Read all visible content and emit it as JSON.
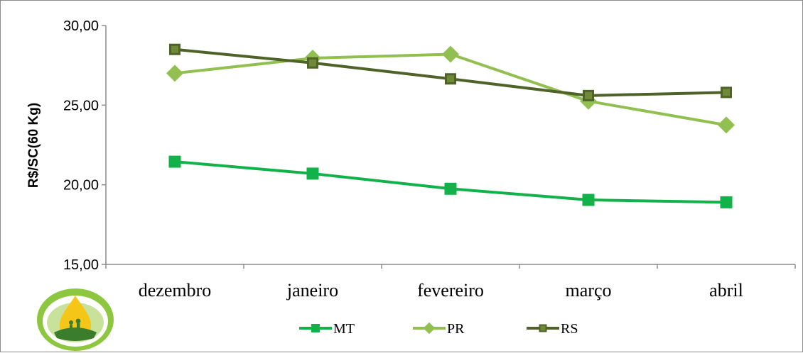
{
  "chart_data": {
    "type": "line",
    "title": "",
    "xlabel": "",
    "ylabel": "R$/SC(60 Kg)",
    "categories": [
      "dezembro",
      "janeiro",
      "fevereiro",
      "março",
      "abril"
    ],
    "y_ticks": [
      "15,00",
      "20,00",
      "25,00",
      "30,00"
    ],
    "ylim": [
      15,
      30
    ],
    "grid": false,
    "legend_position": "bottom",
    "series": [
      {
        "name": "MT",
        "values": [
          21.45,
          20.7,
          19.75,
          19.05,
          18.9
        ],
        "color": "#12b24a",
        "marker": "square"
      },
      {
        "name": "PR",
        "values": [
          27.0,
          27.95,
          28.2,
          25.25,
          23.75
        ],
        "color": "#92c050",
        "marker": "diamond"
      },
      {
        "name": "RS",
        "values": [
          28.5,
          27.65,
          26.65,
          25.6,
          25.8
        ],
        "color": "#4f6228",
        "marker": "square"
      }
    ]
  },
  "logo": {
    "name": "logo-emblem",
    "colors": [
      "#8dc63f",
      "#f5c518",
      "#3a7d2c"
    ]
  }
}
